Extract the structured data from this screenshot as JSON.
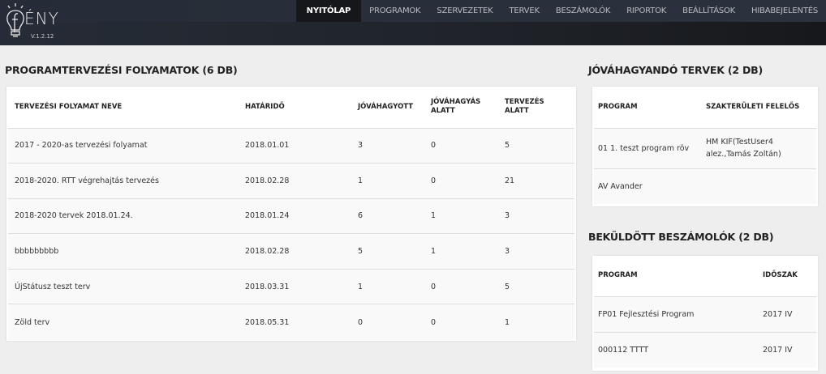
{
  "app": {
    "logo_text": "ÉNY",
    "version": "V.1.2.12"
  },
  "nav": [
    {
      "label": "NYITÓLAP",
      "active": true
    },
    {
      "label": "PROGRAMOK"
    },
    {
      "label": "SZERVEZETEK"
    },
    {
      "label": "TERVEK"
    },
    {
      "label": "BESZÁMOLÓK"
    },
    {
      "label": "RIPORTOK"
    },
    {
      "label": "BEÁLLÍTÁSOK"
    },
    {
      "label": "HIBABEJELENTÉS"
    }
  ],
  "processes": {
    "title": "PROGRAMTERVEZÉSI FOLYAMATOK (6 DB)",
    "headers": [
      "TERVEZÉSI FOLYAMAT NEVE",
      "HATÁRIDŐ",
      "JÓVÁHAGYOTT",
      "JÓVÁHAGYÁS ALATT",
      "TERVEZÉS ALATT"
    ],
    "rows": [
      [
        "2017 - 2020-as tervezési folyamat",
        "2018.01.01",
        "3",
        "0",
        "5"
      ],
      [
        "2018-2020. RTT végrehajtás tervezés",
        "2018.02.28",
        "1",
        "0",
        "21"
      ],
      [
        "2018-2020 tervek 2018.01.24.",
        "2018.01.24",
        "6",
        "1",
        "3"
      ],
      [
        "bbbbbbbbb",
        "2018.02.28",
        "5",
        "1",
        "3"
      ],
      [
        "ÚjStátusz teszt terv",
        "2018.03.31",
        "1",
        "0",
        "5"
      ],
      [
        "Zöld terv",
        "2018.05.31",
        "0",
        "0",
        "1"
      ]
    ]
  },
  "approvals": {
    "title": "JÓVÁHAGYANDÓ TERVEK (2 DB)",
    "headers": [
      "PROGRAM",
      "SZAKTERÜLETI FELELŐS"
    ],
    "rows": [
      [
        "01 1. teszt program röv",
        "HM KIF(TestUser4 alez.,Tamás Zoltán)"
      ],
      [
        "AV Avander",
        ""
      ]
    ]
  },
  "reports": {
    "title": "BEKÜLDÖTT BESZÁMOLÓK (2 DB)",
    "headers": [
      "PROGRAM",
      "IDŐSZAK"
    ],
    "rows": [
      [
        "FP01 Fejlesztési Program",
        "2017 IV"
      ],
      [
        "000112 TTTT",
        "2017 IV"
      ]
    ]
  }
}
